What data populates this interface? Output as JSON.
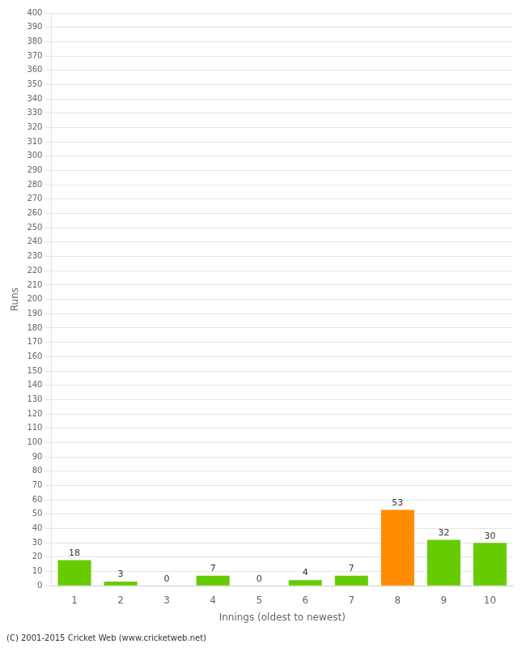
{
  "chart_data": {
    "type": "bar",
    "categories": [
      "1",
      "2",
      "3",
      "4",
      "5",
      "6",
      "7",
      "8",
      "9",
      "10"
    ],
    "values": [
      18,
      3,
      0,
      7,
      0,
      4,
      7,
      53,
      32,
      30
    ],
    "colors": [
      "#66cc00",
      "#66cc00",
      "#66cc00",
      "#66cc00",
      "#66cc00",
      "#66cc00",
      "#66cc00",
      "#ff8c00",
      "#66cc00",
      "#66cc00"
    ],
    "xlabel": "Innings (oldest to newest)",
    "ylabel": "Runs",
    "ylim": [
      0,
      400
    ],
    "yticks": [
      0,
      10,
      20,
      30,
      40,
      50,
      60,
      70,
      80,
      90,
      100,
      110,
      120,
      130,
      140,
      150,
      160,
      170,
      180,
      190,
      200,
      210,
      220,
      230,
      240,
      250,
      260,
      270,
      280,
      290,
      300,
      310,
      320,
      330,
      340,
      350,
      360,
      370,
      380,
      390,
      400
    ],
    "grid": true,
    "data_labels": true,
    "annotations": [
      "(C) 2001-2015 Cricket Web (www.cricketweb.net)"
    ]
  }
}
